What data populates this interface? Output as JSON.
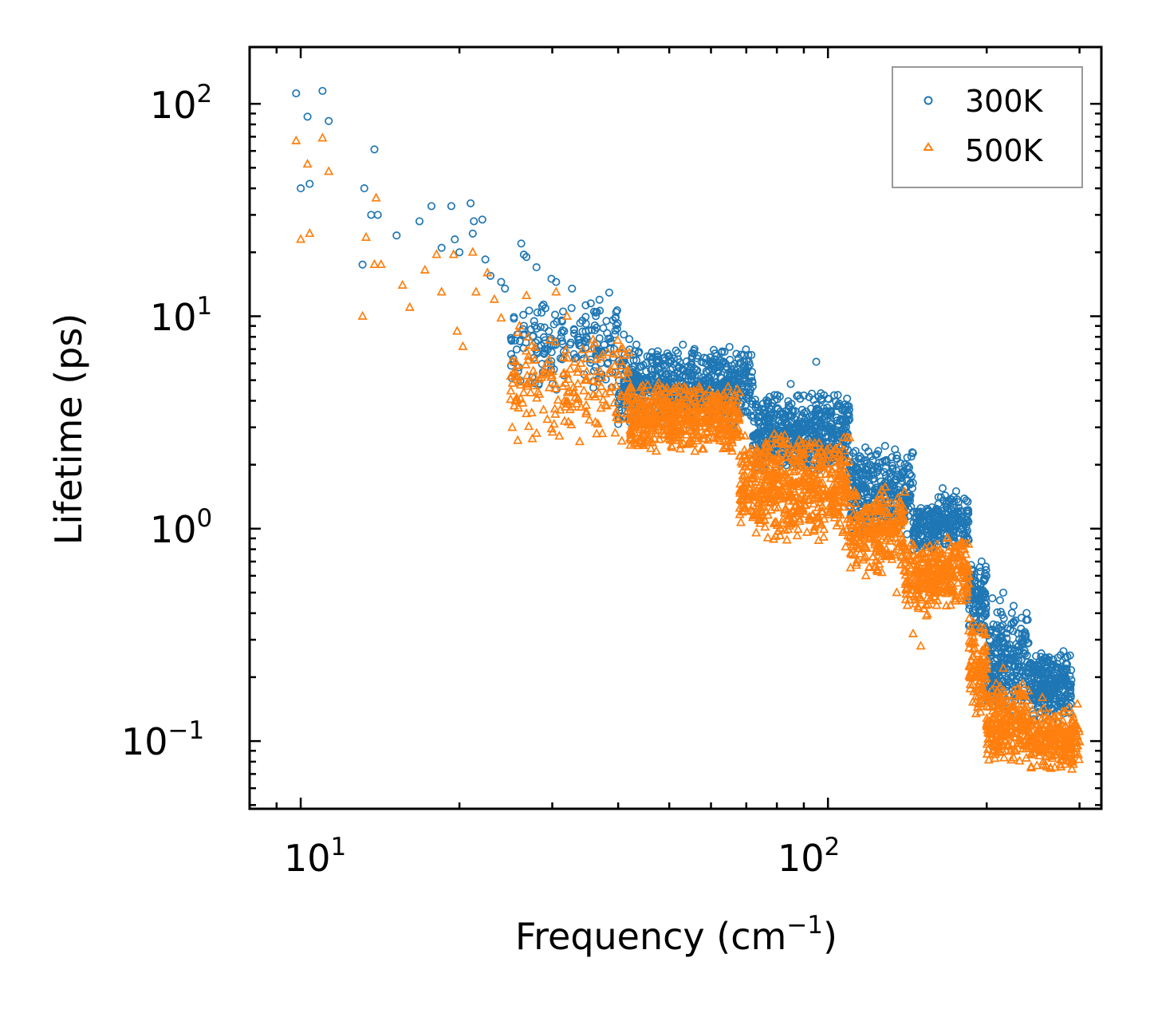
{
  "chart_data": {
    "type": "scatter",
    "xscale": "log",
    "yscale": "log",
    "xlim": [
      8.0,
      330.0
    ],
    "ylim": [
      0.048,
      185.0
    ],
    "xlabel": "Frequency (cm",
    "xlabel_sup": "−1",
    "xlabel_end": ")",
    "ylabel": "Lifetime (ps)",
    "x_ticks": [
      {
        "value": 10,
        "base": "10",
        "exp": "1"
      },
      {
        "value": 100,
        "base": "10",
        "exp": "2"
      }
    ],
    "y_ticks": [
      {
        "value": 0.1,
        "base": "10",
        "exp": "−1"
      },
      {
        "value": 1,
        "base": "10",
        "exp": "0"
      },
      {
        "value": 10,
        "base": "10",
        "exp": "1"
      },
      {
        "value": 100,
        "base": "10",
        "exp": "2"
      }
    ],
    "legend_position": "top-right",
    "series": [
      {
        "name": "300K",
        "marker": "circle",
        "color": "#1f77b4",
        "explicit_points": [
          [
            9.8,
            112
          ],
          [
            11,
            115
          ],
          [
            10.3,
            87
          ],
          [
            11.3,
            83
          ],
          [
            10,
            40
          ],
          [
            10.4,
            42
          ],
          [
            13.8,
            61
          ],
          [
            13.2,
            40
          ],
          [
            13.6,
            30
          ],
          [
            14,
            30
          ],
          [
            13.1,
            17.5
          ],
          [
            15.2,
            24
          ],
          [
            16.8,
            28
          ],
          [
            17.7,
            33
          ],
          [
            18.5,
            21
          ],
          [
            19.3,
            33
          ],
          [
            19.6,
            23
          ],
          [
            20,
            20
          ],
          [
            21,
            34
          ],
          [
            21.3,
            28
          ],
          [
            22.1,
            28.5
          ],
          [
            21.2,
            24.5
          ],
          [
            22.4,
            18.5
          ],
          [
            22.9,
            15.5
          ],
          [
            24.4,
            13.5
          ],
          [
            24,
            14.5
          ],
          [
            26.2,
            22
          ],
          [
            26.5,
            19.5
          ],
          [
            26.8,
            19
          ],
          [
            28,
            17
          ],
          [
            29.9,
            15
          ],
          [
            30.5,
            14.5
          ],
          [
            32.7,
            13.5
          ],
          [
            35.5,
            11.5
          ],
          [
            36,
            10.5
          ],
          [
            38,
            9.5
          ],
          [
            39.5,
            9.8
          ],
          [
            41,
            8.2
          ],
          [
            42,
            7.8
          ],
          [
            50,
            6.5
          ],
          [
            60,
            6.0
          ],
          [
            70,
            5.0
          ],
          [
            85,
            4.8
          ],
          [
            95,
            6.1
          ],
          [
            105,
            3.8
          ],
          [
            118,
            2.1
          ],
          [
            130,
            1.7
          ],
          [
            140,
            1.3
          ],
          [
            150,
            1.25
          ],
          [
            165,
            1.55
          ],
          [
            175,
            1.5
          ],
          [
            205,
            0.47
          ],
          [
            212,
            0.46
          ],
          [
            215,
            0.5
          ],
          [
            230,
            0.28
          ],
          [
            240,
            0.29
          ],
          [
            255,
            0.24
          ],
          [
            275,
            0.15
          ]
        ],
        "bands": [
          {
            "x": [
              25,
              40
            ],
            "y": [
              4.2,
              13.5
            ],
            "n": 180
          },
          {
            "x": [
              40,
              72
            ],
            "y": [
              3.0,
              7.5
            ],
            "n": 650
          },
          {
            "x": [
              72,
              110
            ],
            "y": [
              1.8,
              4.5
            ],
            "n": 550
          },
          {
            "x": [
              110,
              145
            ],
            "y": [
              0.9,
              2.6
            ],
            "n": 300
          },
          {
            "x": [
              145,
              160
            ],
            "y": [
              0.75,
              1.35
            ],
            "n": 120
          },
          {
            "x": [
              160,
              185
            ],
            "y": [
              0.8,
              1.45
            ],
            "n": 160
          },
          {
            "x": [
              185,
              200
            ],
            "y": [
              0.3,
              0.75
            ],
            "n": 110
          },
          {
            "x": [
              200,
              240
            ],
            "y": [
              0.13,
              0.45
            ],
            "n": 240
          },
          {
            "x": [
              240,
              290
            ],
            "y": [
              0.12,
              0.27
            ],
            "n": 280
          }
        ]
      },
      {
        "name": "500K",
        "marker": "triangle",
        "color": "#ff7f0e",
        "explicit_points": [
          [
            9.8,
            67
          ],
          [
            11,
            69
          ],
          [
            10.3,
            52
          ],
          [
            11.3,
            48
          ],
          [
            10,
            23
          ],
          [
            10.4,
            24.5
          ],
          [
            13.1,
            10
          ],
          [
            13.3,
            23.5
          ],
          [
            13.9,
            36
          ],
          [
            13.8,
            17.5
          ],
          [
            14.2,
            17.5
          ],
          [
            15.6,
            14
          ],
          [
            16.1,
            11
          ],
          [
            17.2,
            16.5
          ],
          [
            18.1,
            19.5
          ],
          [
            18.5,
            13
          ],
          [
            19.5,
            19.5
          ],
          [
            19.8,
            8.5
          ],
          [
            20.3,
            7.2
          ],
          [
            21.2,
            20
          ],
          [
            21.5,
            13
          ],
          [
            22.6,
            16
          ],
          [
            23.3,
            12
          ],
          [
            24,
            9.8
          ],
          [
            25.5,
            5.5
          ],
          [
            26,
            9
          ],
          [
            26.8,
            12.5
          ],
          [
            27,
            6.2
          ],
          [
            25.8,
            2.6
          ],
          [
            27.5,
            2.65
          ],
          [
            28.2,
            4.4
          ],
          [
            29.3,
            6
          ],
          [
            30.5,
            13
          ],
          [
            32,
            10
          ],
          [
            34,
            6
          ],
          [
            37,
            5.5
          ],
          [
            40,
            5.3
          ],
          [
            45,
            4.5
          ],
          [
            52,
            3.5
          ],
          [
            60,
            3.1
          ],
          [
            68,
            2.2
          ],
          [
            75,
            1.5
          ],
          [
            82,
            1.5
          ],
          [
            92,
            1.1
          ],
          [
            96,
            0.88
          ],
          [
            108,
            0.82
          ],
          [
            112,
            0.75
          ],
          [
            118,
            0.6
          ],
          [
            125,
            0.68
          ],
          [
            135,
            0.5
          ],
          [
            145,
            0.32
          ],
          [
            150,
            0.28
          ],
          [
            155,
            0.44
          ],
          [
            160,
            0.6
          ],
          [
            170,
            0.68
          ],
          [
            178,
            0.7
          ],
          [
            185,
            0.33
          ],
          [
            200,
            0.12
          ],
          [
            210,
            0.17
          ],
          [
            215,
            0.22
          ],
          [
            235,
            0.13
          ],
          [
            255,
            0.16
          ],
          [
            270,
            0.095
          ],
          [
            290,
            0.092
          ]
        ],
        "bands": [
          {
            "x": [
              25,
              42
            ],
            "y": [
              2.5,
              8.5
            ],
            "n": 180
          },
          {
            "x": [
              42,
              68
            ],
            "y": [
              2.2,
              5.0
            ],
            "n": 550
          },
          {
            "x": [
              68,
              110
            ],
            "y": [
              0.85,
              3.0
            ],
            "n": 600
          },
          {
            "x": [
              110,
              140
            ],
            "y": [
              0.6,
              1.6
            ],
            "n": 260
          },
          {
            "x": [
              140,
              160
            ],
            "y": [
              0.38,
              0.9
            ],
            "n": 140
          },
          {
            "x": [
              160,
              185
            ],
            "y": [
              0.42,
              0.95
            ],
            "n": 170
          },
          {
            "x": [
              185,
              200
            ],
            "y": [
              0.13,
              0.4
            ],
            "n": 110
          },
          {
            "x": [
              200,
              240
            ],
            "y": [
              0.075,
              0.19
            ],
            "n": 240
          },
          {
            "x": [
              240,
              300
            ],
            "y": [
              0.07,
              0.15
            ],
            "n": 260
          }
        ]
      }
    ]
  }
}
